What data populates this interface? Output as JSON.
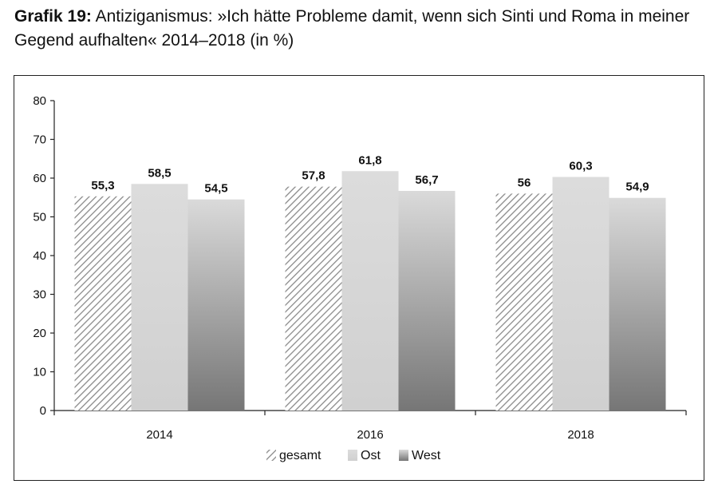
{
  "header": {
    "prefix": "Grafik 19:",
    "title": "Antiziganismus: »Ich hätte Probleme damit, wenn sich Sinti und Roma in meiner Gegend aufhalten« 2014–2018 (in %)"
  },
  "colors": {
    "ost": "#d6d6d6",
    "west_top": "#d9d9d9",
    "west_bottom": "#7a7a7a",
    "gesamt_hatch": "#8a8a8a"
  },
  "chart_data": {
    "type": "bar",
    "categories": [
      "2014",
      "2016",
      "2018"
    ],
    "series": [
      {
        "name": "gesamt",
        "values": [
          55.3,
          57.8,
          56
        ],
        "labels": [
          "55,3",
          "57,8",
          "56"
        ]
      },
      {
        "name": "Ost",
        "values": [
          58.5,
          61.8,
          60.3
        ],
        "labels": [
          "58,5",
          "61,8",
          "60,3"
        ]
      },
      {
        "name": "West",
        "values": [
          54.5,
          56.7,
          54.9
        ],
        "labels": [
          "54,5",
          "56,7",
          "54,9"
        ]
      }
    ],
    "yticks": [
      "0",
      "10",
      "20",
      "30",
      "40",
      "50",
      "60",
      "70",
      "80"
    ],
    "ylim": [
      0,
      80
    ],
    "grid": false,
    "legend": "bottom"
  }
}
